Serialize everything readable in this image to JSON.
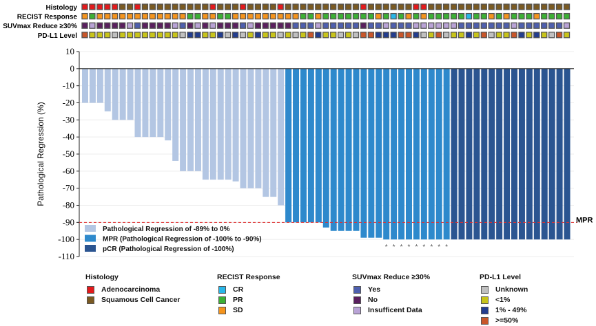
{
  "chart_data": {
    "type": "bar",
    "ylabel": "Pathological Regression (%)",
    "ylim": [
      -110,
      10
    ],
    "yticks": [
      10,
      0,
      -10,
      -20,
      -30,
      -40,
      -50,
      -60,
      -70,
      -80,
      -90,
      -100,
      -110
    ],
    "grid": true,
    "threshold": {
      "value": -90,
      "label": "MPR",
      "color": "#e03030"
    },
    "values": [
      -20,
      -20,
      -20,
      -25,
      -30,
      -30,
      -30,
      -40,
      -40,
      -40,
      -40,
      -42,
      -54,
      -60,
      -60,
      -60,
      -65,
      -65,
      -65,
      -65,
      -66,
      -70,
      -70,
      -70,
      -75,
      -75,
      -80,
      -90,
      -90,
      -90,
      -90,
      -90,
      -93,
      -95,
      -95,
      -95,
      -95,
      -99,
      -99,
      -99,
      -100,
      -100,
      -100,
      -100,
      -100,
      -100,
      -100,
      -100,
      -100,
      -100,
      -100,
      -100,
      -100,
      -100,
      -100,
      -100,
      -100,
      -100,
      -100,
      -100,
      -100,
      -100,
      -100,
      -100,
      -100
    ],
    "groups": [
      "light",
      "light",
      "light",
      "light",
      "light",
      "light",
      "light",
      "light",
      "light",
      "light",
      "light",
      "light",
      "light",
      "light",
      "light",
      "light",
      "light",
      "light",
      "light",
      "light",
      "light",
      "light",
      "light",
      "light",
      "light",
      "light",
      "light",
      "mpr",
      "mpr",
      "mpr",
      "mpr",
      "mpr",
      "mpr",
      "mpr",
      "mpr",
      "mpr",
      "mpr",
      "mpr",
      "mpr",
      "mpr",
      "mpr",
      "mpr",
      "mpr",
      "mpr",
      "mpr",
      "mpr",
      "mpr",
      "mpr",
      "mpr",
      "pcr",
      "pcr",
      "pcr",
      "pcr",
      "pcr",
      "pcr",
      "pcr",
      "pcr",
      "pcr",
      "pcr",
      "pcr",
      "pcr",
      "pcr",
      "pcr",
      "pcr",
      "pcr"
    ],
    "asterisk_marks": [
      40,
      41,
      42,
      43,
      44,
      45,
      46,
      47,
      48
    ],
    "asterisk_symbol": "*",
    "series": [
      {
        "key": "light",
        "name": "Pathological Regression of -89% to 0%",
        "color": "#b3c6e3"
      },
      {
        "key": "mpr",
        "name": "MPR (Pathological Regression of -100% to -90%)",
        "color": "#2e89cc"
      },
      {
        "key": "pcr",
        "name": "pCR (Pathological Regression of -100%)",
        "color": "#2b5591"
      }
    ],
    "legend_position": "bottom-left inside",
    "annotation_tracks": [
      {
        "label": "Histology",
        "codes": "RRRRRSSRSSSSSSSSSRSSSRSSSSRSSSSSSSSSSRSSSSSSRRSSSSSSSSSSSSSSSSSSS"
      },
      {
        "label": "RECIST Response",
        "codes": "OGOOOOOOOOOOOOGGOOGGOOOOOOOOOGGOGGGGGGGOGCGOGOGGGGGCGGOGOGGGOGGGG"
      },
      {
        "label": "SUVmax Reduce ≥30%",
        "codes": "NLNNNNLBNNNNLBNLNLNNNBLNNNNNBBBLBBBBBNBBLBBBLLLLLLBBBBBBBLBBBBBBL"
      },
      {
        "label": "PD-L1 Level",
        "codes": "HYYYUYYYYYYYYUBBYYBUBUYBYYUYUYHBYYUYUHHBBBHHBUYHUYYBYHUYYHBYBYUHY"
      }
    ]
  },
  "legends": [
    {
      "title": "Histology",
      "items": [
        {
          "code": "R",
          "label": "Adenocarcinoma",
          "color": "#e31a1c"
        },
        {
          "code": "S",
          "label": "Squamous Cell Cancer",
          "color": "#7a5a22"
        }
      ]
    },
    {
      "title": "RECIST Response",
      "items": [
        {
          "code": "C",
          "label": "CR",
          "color": "#29b6e8"
        },
        {
          "code": "G",
          "label": "PR",
          "color": "#3cb034"
        },
        {
          "code": "O",
          "label": "SD",
          "color": "#f5941d"
        }
      ]
    },
    {
      "title": "SUVmax Reduce ≥30%",
      "items": [
        {
          "code": "B",
          "label": "Yes",
          "color": "#4e5fae"
        },
        {
          "code": "N",
          "label": "No",
          "color": "#5a1f5e"
        },
        {
          "code": "L",
          "label": "Insufficent Data",
          "color": "#b9a3d6"
        }
      ]
    },
    {
      "title": "PD-L1 Level",
      "items": [
        {
          "code": "U",
          "label": "Unknown",
          "color": "#c0c0c0"
        },
        {
          "code": "Y",
          "label": "<1%",
          "color": "#c8c41a"
        },
        {
          "code": "B",
          "label": "1% - 49%",
          "color": "#233d8e"
        },
        {
          "code": "H",
          "label": ">=50%",
          "color": "#c8562a"
        }
      ]
    }
  ]
}
